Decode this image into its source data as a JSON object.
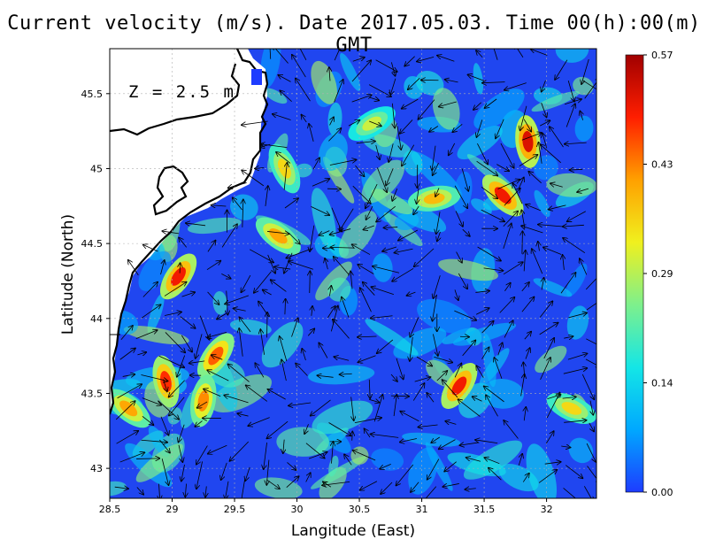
{
  "title": "Current velocity (m/s). Date 2017.05.03. Time 00(h):00(m) GMT",
  "depth_label": "Z = 2.5 m",
  "xaxis": {
    "label": "Langitude (East)",
    "range": [
      28.5,
      32.4
    ],
    "ticks": [
      "28.5",
      "29",
      "29.5",
      "30",
      "30.5",
      "31",
      "31.5",
      "32"
    ]
  },
  "yaxis": {
    "label": "Latitude (North)",
    "range": [
      42.8,
      45.8
    ],
    "ticks": [
      "43",
      "43.5",
      "44",
      "44.5",
      "45",
      "45.5"
    ]
  },
  "colorbar": {
    "min": 0.0,
    "max": 0.57,
    "labels": [
      "0.00",
      "0.14",
      "0.29",
      "0.43",
      "0.57"
    ],
    "colormap": [
      "#1e3cff",
      "#00a8ff",
      "#14e6e6",
      "#7ef08c",
      "#f0f01e",
      "#ffa000",
      "#ff1e00",
      "#a00000"
    ]
  },
  "map": {
    "land_color": "#ffffff",
    "coastline_color": "#000000",
    "grid": true,
    "vectors": true
  },
  "chart_data": {
    "type": "heatmap",
    "title": "Current velocity (m/s). Date 2017.05.03. Time 00(h):00(m) GMT",
    "xlabel": "Langitude (East)",
    "ylabel": "Latitude (North)",
    "xlim": [
      28.5,
      32.4
    ],
    "ylim": [
      42.8,
      45.8
    ],
    "clim": [
      0.0,
      0.57
    ],
    "hotspots": [
      {
        "lon": 31.85,
        "lat": 45.18,
        "speed": 0.52
      },
      {
        "lon": 31.65,
        "lat": 44.82,
        "speed": 0.5
      },
      {
        "lon": 31.3,
        "lat": 43.55,
        "speed": 0.5
      },
      {
        "lon": 29.05,
        "lat": 44.28,
        "speed": 0.5
      },
      {
        "lon": 28.95,
        "lat": 43.58,
        "speed": 0.48
      },
      {
        "lon": 29.35,
        "lat": 43.75,
        "speed": 0.45
      },
      {
        "lon": 28.65,
        "lat": 43.4,
        "speed": 0.4
      },
      {
        "lon": 29.85,
        "lat": 44.55,
        "speed": 0.4
      },
      {
        "lon": 29.25,
        "lat": 43.45,
        "speed": 0.42
      },
      {
        "lon": 31.1,
        "lat": 44.8,
        "speed": 0.38
      },
      {
        "lon": 29.9,
        "lat": 45.0,
        "speed": 0.35
      },
      {
        "lon": 30.6,
        "lat": 45.3,
        "speed": 0.3
      },
      {
        "lon": 32.2,
        "lat": 43.4,
        "speed": 0.35
      }
    ]
  }
}
